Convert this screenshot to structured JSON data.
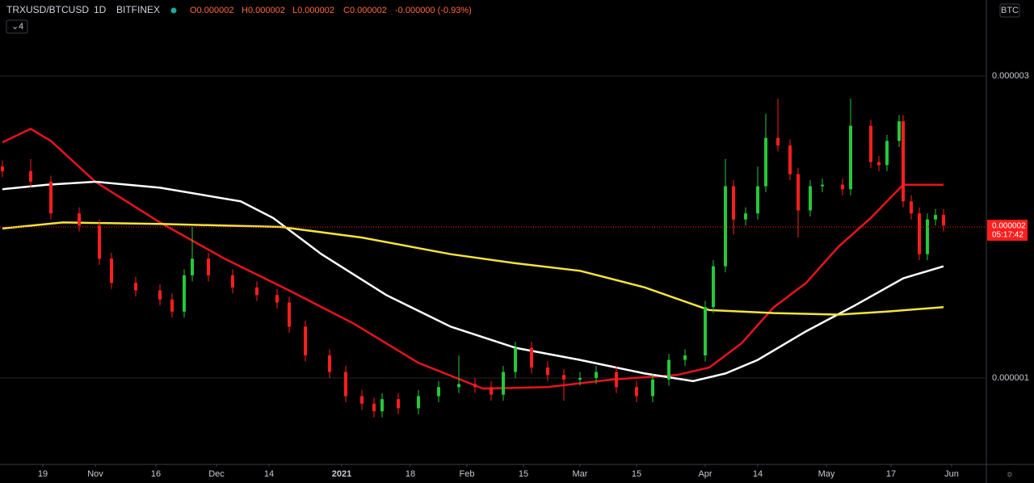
{
  "header": {
    "symbol": "TRXUSD/BTCUSD",
    "interval": "1D",
    "exchange": "BITFINEX",
    "open": "O0.000002",
    "high": "H0.000002",
    "low": "L0.000002",
    "close": "C0.000002",
    "change": "-0.000000 (-0.93%)",
    "indicators": "4",
    "currency": "BTC",
    "countdown": "05:17:42"
  },
  "chart_data": {
    "type": "candlestick",
    "up_color": "#26c83a",
    "down_color": "#ff1e1e",
    "grid": true,
    "xlim": [
      -10.6,
      233.4
    ],
    "ylim": [
      4.28e-07,
      3.503e-06
    ],
    "yticks": [
      1e-06,
      3e-06
    ],
    "last_price": 2e-06,
    "last_price_color": "#ff1e1e",
    "xticks": [
      {
        "value": 0,
        "label": "19"
      },
      {
        "value": 13,
        "label": "Nov"
      },
      {
        "value": 28,
        "label": "16"
      },
      {
        "value": 43,
        "label": "Dec"
      },
      {
        "value": 56,
        "label": "14"
      },
      {
        "value": 74,
        "label": "2021"
      },
      {
        "value": 91,
        "label": "18"
      },
      {
        "value": 105,
        "label": "Feb"
      },
      {
        "value": 119,
        "label": "15"
      },
      {
        "value": 133,
        "label": "Mar"
      },
      {
        "value": 147,
        "label": "15"
      },
      {
        "value": 164,
        "label": "Apr"
      },
      {
        "value": 177,
        "label": "14"
      },
      {
        "value": 194,
        "label": "May"
      },
      {
        "value": 210,
        "label": "17"
      },
      {
        "value": 225,
        "label": "Jun"
      }
    ],
    "x": [
      -10,
      -3,
      2,
      9,
      14,
      17,
      23,
      29,
      32,
      35,
      37,
      41,
      47,
      53,
      58,
      61,
      65,
      71,
      75,
      79,
      82,
      84,
      88,
      93,
      98,
      103,
      107,
      111,
      114,
      117,
      121,
      125,
      129,
      133,
      137,
      142,
      147,
      151,
      155,
      159,
      164,
      166,
      169,
      171,
      174,
      177,
      179,
      182,
      185,
      187,
      190,
      193,
      198,
      200,
      205,
      207,
      209,
      212,
      213,
      215,
      217,
      219,
      221,
      223
    ],
    "open": [
      2.4e-06,
      2.37e-06,
      2.3e-06,
      2.09e-06,
      2.01e-06,
      1.79e-06,
      1.63e-06,
      1.58e-06,
      1.52e-06,
      1.44e-06,
      1.68e-06,
      1.79e-06,
      1.68e-06,
      1.6e-06,
      1.55e-06,
      1.5e-06,
      1.34e-06,
      1.15e-06,
      1.04e-06,
      8.8e-07,
      8.3e-07,
      7.8e-07,
      8.6e-07,
      8e-07,
      8.8e-07,
      9.4e-07,
      9.6e-07,
      9.4e-07,
      8.9e-07,
      1.04e-06,
      1.2e-06,
      1.07e-06,
      1.02e-06,
      9.9e-07,
      1e-06,
      1.04e-06,
      9.4e-07,
      8.8e-07,
      9.9e-07,
      1.12e-06,
      1.15e-06,
      1.47e-06,
      1.74e-06,
      2.27e-06,
      2.05e-06,
      2.09e-06,
      2.27e-06,
      2.59e-06,
      2.54e-06,
      2.35e-06,
      2.11e-06,
      2.27e-06,
      2.28e-06,
      2.25e-06,
      2.67e-06,
      2.43e-06,
      2.41e-06,
      2.57e-06,
      2.7e-06,
      2.17e-06,
      2.09e-06,
      1.82e-06,
      2.05e-06,
      2.08e-06
    ],
    "high": [
      2.44e-06,
      2.45e-06,
      2.34e-06,
      2.13e-06,
      2.05e-06,
      1.83e-06,
      1.67e-06,
      1.62e-06,
      1.56e-06,
      1.72e-06,
      2e-06,
      1.83e-06,
      1.72e-06,
      1.64e-06,
      1.59e-06,
      1.54e-06,
      1.38e-06,
      1.19e-06,
      1.08e-06,
      9.2e-07,
      8.7e-07,
      9e-07,
      9e-07,
      9.2e-07,
      9.8e-07,
      1.15e-06,
      1e-06,
      9.8e-07,
      1.08e-06,
      1.24e-06,
      1.24e-06,
      1.11e-06,
      1.06e-06,
      1.04e-06,
      1.08e-06,
      1.08e-06,
      9.8e-07,
      1.03e-06,
      1.16e-06,
      1.19e-06,
      1.51e-06,
      1.78e-06,
      2.45e-06,
      2.31e-06,
      2.13e-06,
      2.4e-06,
      2.75e-06,
      2.85e-06,
      2.58e-06,
      2.39e-06,
      2.31e-06,
      2.32e-06,
      2.32e-06,
      2.85e-06,
      2.71e-06,
      2.47e-06,
      2.61e-06,
      2.74e-06,
      2.74e-06,
      2.21e-06,
      2.13e-06,
      2.09e-06,
      2.12e-06,
      2.12e-06
    ],
    "low": [
      2.33e-06,
      2.26e-06,
      2.05e-06,
      1.97e-06,
      1.75e-06,
      1.59e-06,
      1.54e-06,
      1.48e-06,
      1.4e-06,
      1.4e-06,
      1.64e-06,
      1.64e-06,
      1.56e-06,
      1.51e-06,
      1.46e-06,
      1.3e-06,
      1.11e-06,
      1e-06,
      8.4e-07,
      7.9e-07,
      7.4e-07,
      7.4e-07,
      7.6e-07,
      7.6e-07,
      8.4e-07,
      9e-07,
      9e-07,
      8.5e-07,
      8.5e-07,
      1e-06,
      1.03e-06,
      9.8e-07,
      8.5e-07,
      9.5e-07,
      9.6e-07,
      9e-07,
      8.4e-07,
      8.4e-07,
      9.5e-07,
      1.08e-06,
      1.11e-06,
      1.43e-06,
      1.7e-06,
      1.95e-06,
      2.01e-06,
      2.05e-06,
      2.23e-06,
      2.5e-06,
      2.31e-06,
      1.93e-06,
      2.07e-06,
      2.23e-06,
      2.21e-06,
      2.21e-06,
      2.39e-06,
      2.37e-06,
      2.37e-06,
      2.53e-06,
      2.13e-06,
      2.05e-06,
      1.78e-06,
      1.78e-06,
      2.01e-06,
      1.97e-06
    ],
    "close": [
      2.37e-06,
      2.3e-06,
      2.09e-06,
      2.01e-06,
      1.79e-06,
      1.63e-06,
      1.58e-06,
      1.52e-06,
      1.44e-06,
      1.68e-06,
      1.79e-06,
      1.68e-06,
      1.6e-06,
      1.55e-06,
      1.5e-06,
      1.34e-06,
      1.15e-06,
      1.04e-06,
      8.8e-07,
      8.3e-07,
      7.8e-07,
      8.6e-07,
      8e-07,
      8.8e-07,
      9.4e-07,
      9.6e-07,
      9.4e-07,
      8.9e-07,
      1.04e-06,
      1.2e-06,
      1.07e-06,
      1.02e-06,
      9.9e-07,
      1e-06,
      1.04e-06,
      9.4e-07,
      8.8e-07,
      9.9e-07,
      1.12e-06,
      1.15e-06,
      1.47e-06,
      1.74e-06,
      2.27e-06,
      2.05e-06,
      2.09e-06,
      2.27e-06,
      2.59e-06,
      2.54e-06,
      2.35e-06,
      2.11e-06,
      2.27e-06,
      2.28e-06,
      2.25e-06,
      2.67e-06,
      2.43e-06,
      2.41e-06,
      2.57e-06,
      2.7e-06,
      2.17e-06,
      2.09e-06,
      1.82e-06,
      2.05e-06,
      2.08e-06,
      2.01e-06
    ],
    "lines": [
      {
        "color": "#e8141e",
        "x": [
          -10,
          -3,
          2,
          13,
          29,
          45,
          61,
          77,
          93,
          109,
          125,
          141,
          157,
          165,
          173,
          181,
          189,
          197,
          205,
          213,
          223
        ],
        "values": [
          2.56e-06,
          2.65e-06,
          2.57e-06,
          2.3e-06,
          2.03e-06,
          1.79e-06,
          1.58e-06,
          1.36e-06,
          1.1e-06,
          9.3e-07,
          9.4e-07,
          9.9e-07,
          1.02e-06,
          1.07e-06,
          1.23e-06,
          1.47e-06,
          1.63e-06,
          1.87e-06,
          2.06e-06,
          2.28e-06,
          2.28e-06
        ]
      },
      {
        "color": "#ffffff",
        "x": [
          -10,
          1,
          13,
          29,
          49,
          57,
          69,
          85,
          101,
          117,
          133,
          149,
          161,
          169,
          177,
          189,
          201,
          213,
          223
        ],
        "values": [
          2.25e-06,
          2.28e-06,
          2.3e-06,
          2.26e-06,
          2.17e-06,
          2.06e-06,
          1.82e-06,
          1.55e-06,
          1.34e-06,
          1.2e-06,
          1.12e-06,
          1.03e-06,
          9.8e-07,
          1.03e-06,
          1.12e-06,
          1.31e-06,
          1.48e-06,
          1.66e-06,
          1.74e-06
        ]
      },
      {
        "color": "#f5e53b",
        "x": [
          -10,
          5,
          29,
          59,
          79,
          101,
          117,
          133,
          149,
          165,
          181,
          197,
          209,
          223
        ],
        "values": [
          1.99e-06,
          2.03e-06,
          2.02e-06,
          2e-06,
          1.93e-06,
          1.82e-06,
          1.76e-06,
          1.71e-06,
          1.6e-06,
          1.45e-06,
          1.43e-06,
          1.42e-06,
          1.44e-06,
          1.47e-06
        ]
      }
    ]
  }
}
